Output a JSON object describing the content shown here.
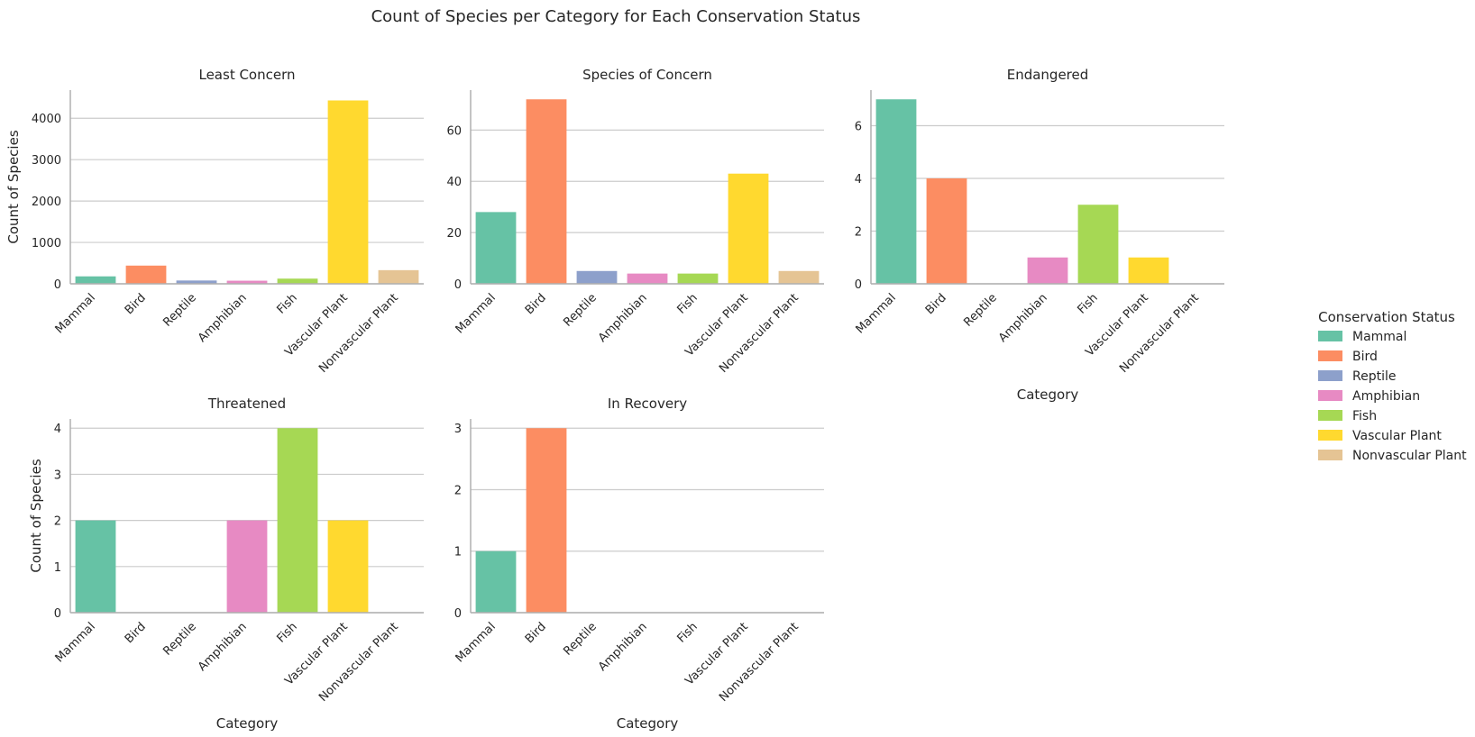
{
  "chart_data": {
    "type": "bar",
    "title": "Count of Species per Category for Each Conservation Status",
    "categories": [
      "Mammal",
      "Bird",
      "Reptile",
      "Amphibian",
      "Fish",
      "Vascular Plant",
      "Nonvascular Plant"
    ],
    "colors": [
      "#66c2a5",
      "#fc8d62",
      "#8da0cb",
      "#e78ac3",
      "#a6d854",
      "#ffd92f",
      "#e5c494"
    ],
    "xlabel": "Category",
    "ylabel": "Count of Species",
    "grid": "horizontal",
    "legend": {
      "title": "Conservation Status",
      "placement": "right",
      "entries": [
        "Mammal",
        "Bird",
        "Reptile",
        "Amphibian",
        "Fish",
        "Vascular Plant",
        "Nonvascular Plant"
      ]
    },
    "facets": [
      {
        "title": "Least Concern",
        "values": [
          180,
          440,
          80,
          75,
          125,
          4430,
          330
        ],
        "ylim": [
          0,
          4680
        ],
        "yticks": [
          0,
          1000,
          2000,
          3000,
          4000
        ]
      },
      {
        "title": "Species of Concern",
        "values": [
          28,
          72,
          5,
          4,
          4,
          43,
          5
        ],
        "ylim": [
          0,
          75.6
        ],
        "yticks": [
          0,
          20,
          40,
          60
        ]
      },
      {
        "title": "Endangered",
        "values": [
          7,
          4,
          0,
          1,
          3,
          1,
          0
        ],
        "ylim": [
          0,
          7.35
        ],
        "yticks": [
          0,
          2,
          4,
          6
        ]
      },
      {
        "title": "Threatened",
        "values": [
          2,
          0,
          0,
          2,
          4,
          2,
          0
        ],
        "ylim": [
          0,
          4.2
        ],
        "yticks": [
          0,
          1,
          2,
          3,
          4
        ]
      },
      {
        "title": "In Recovery",
        "values": [
          1,
          3,
          0,
          0,
          0,
          0,
          0
        ],
        "ylim": [
          0,
          3.15
        ],
        "yticks": [
          0,
          1,
          2,
          3
        ]
      }
    ]
  }
}
